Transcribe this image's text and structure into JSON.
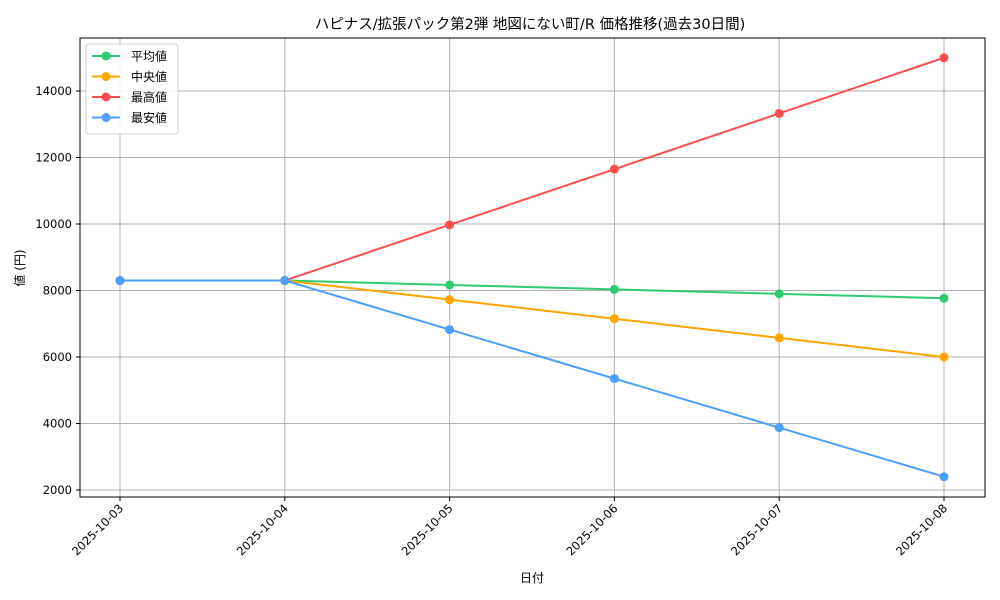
{
  "chart_data": {
    "type": "line",
    "title": "ハピナス/拡張パック第2弾 地図にない町/R 価格推移(過去30日間)",
    "xlabel": "日付",
    "ylabel": "値 (円)",
    "x": [
      "2025-10-03",
      "2025-10-04",
      "2025-10-05",
      "2025-10-06",
      "2025-10-07",
      "2025-10-08"
    ],
    "yticks": [
      2000,
      4000,
      6000,
      8000,
      10000,
      12000,
      14000
    ],
    "ylim": [
      1750,
      15600
    ],
    "grid": true,
    "legend_position": "upper left",
    "series": [
      {
        "name": "平均値",
        "color": "#2ecc71",
        "values": [
          8300,
          8300,
          8167,
          8033,
          7900,
          7767
        ]
      },
      {
        "name": "中央値",
        "color": "#ffa500",
        "values": [
          8300,
          8300,
          7725,
          7150,
          6575,
          6000
        ]
      },
      {
        "name": "最高値",
        "color": "#ff4d4d",
        "values": [
          8300,
          8300,
          9975,
          11650,
          13325,
          15000
        ]
      },
      {
        "name": "最安値",
        "color": "#4d9fff",
        "values": [
          8300,
          8300,
          6825,
          5350,
          3875,
          2400
        ]
      }
    ]
  }
}
